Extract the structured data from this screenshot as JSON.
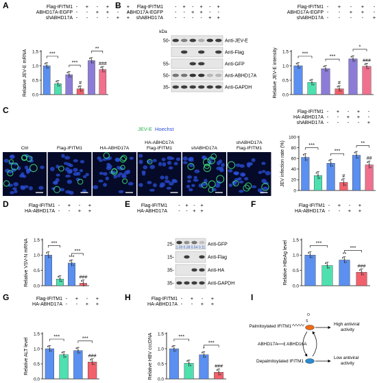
{
  "colors": {
    "blue": "#5b8ff0",
    "teal": "#4fe0b0",
    "red": "#f2606c",
    "purple": "#8c7cd8",
    "pink": "#f0708e",
    "axis": "#000000",
    "blot_bg": "#e6e6e6",
    "band": "#2a2a2a",
    "micro_bg": "#050a28",
    "micro_nuclei": "#2a4fd8",
    "micro_green": "#3de07a",
    "blue_number": "#2a5ec8",
    "palm_node": "#f06a18",
    "depalm_node": "#2b8ad0"
  },
  "panels": {
    "A": "A",
    "B": "B",
    "C": "C",
    "D": "D",
    "E": "E",
    "F": "F",
    "G": "G",
    "H": "H",
    "I": "I"
  },
  "micro": {
    "legend_green": "JEV-E",
    "legend_blue": "Hoechst",
    "labels": [
      [
        "Ctrl"
      ],
      [
        "Flag-IFITM1"
      ],
      [
        "HA-ABHD17A"
      ],
      [
        "HA-ABHD17A",
        "Flag-IFITM1"
      ],
      [
        "shABHD17A"
      ],
      [
        "shABHD17A",
        "Flag-IFITM1"
      ]
    ]
  },
  "blots": {
    "B": {
      "kda": "kDa",
      "conditions": [
        {
          "label": "Flag-IFITM1",
          "signs": [
            "-",
            "+",
            "-",
            "+",
            "-",
            "+"
          ]
        },
        {
          "label": "ABHD17A-EGFP",
          "signs": [
            "-",
            "-",
            "+",
            "+",
            "-",
            "-"
          ]
        },
        {
          "label": "shABHD17A",
          "signs": [
            "-",
            "-",
            "-",
            "-",
            "+",
            "+"
          ]
        }
      ],
      "rows": [
        {
          "marker": "50-",
          "label": "Anti-JEV-E",
          "bands": [
            0.9,
            0.55,
            0.9,
            0.3,
            0.95,
            0.9
          ]
        },
        {
          "marker": "",
          "label": "Anti-Flag",
          "bands": [
            0,
            0.9,
            0,
            0.9,
            0,
            0.9
          ]
        },
        {
          "marker": "55-",
          "label": "Anti-GFP",
          "bands": [
            0,
            0,
            0.9,
            0.9,
            0,
            0
          ]
        },
        {
          "marker": "50-",
          "label": "Anti-ABHD17A",
          "bands": [
            0.6,
            0.6,
            0.95,
            0.95,
            0.25,
            0.25
          ]
        },
        {
          "marker": "35-",
          "label": "Anti-GAPDH",
          "bands": [
            0.9,
            0.9,
            0.9,
            0.9,
            0.9,
            0.9
          ]
        }
      ]
    },
    "E": {
      "conditions": [
        {
          "label": "Flag-IFITM1",
          "signs": [
            "-",
            "+",
            "-",
            "+"
          ]
        },
        {
          "label": "HA-ABHD17A",
          "signs": [
            "-",
            "-",
            "+",
            "+"
          ]
        }
      ],
      "rows": [
        {
          "marker": "25-",
          "label": "Anti-GFP",
          "bands": [
            0.9,
            0.45,
            0.6,
            0.2
          ],
          "numbers": [
            "1.00",
            "0.38",
            "0.54",
            "0.11"
          ]
        },
        {
          "marker": "15-",
          "label": "Anti-Flag",
          "bands": [
            0,
            0.9,
            0,
            0.9
          ]
        },
        {
          "marker": "35-",
          "label": "Anti-HA",
          "bands": [
            0,
            0,
            0.9,
            0.9
          ]
        },
        {
          "marker": "35-",
          "label": "Anti-GAPDH",
          "bands": [
            0.9,
            0.9,
            0.9,
            0.9
          ]
        }
      ]
    }
  },
  "diagram_I": {
    "palmitoylated": "Palmitoylated IFITM1",
    "depalmitoylated": "Depalmitoylated IFITM1",
    "enzyme": "ABHD17A",
    "enzyme_inhibited": "ABHD16A",
    "high_activity": [
      "High antiviral",
      "activity"
    ],
    "low_activity": [
      "Low antiviral",
      "activity"
    ]
  },
  "chart_data": [
    {
      "panel": "A",
      "type": "bar",
      "ylabel": "Relative JEV-E mRNA",
      "ylim": [
        0,
        1.5
      ],
      "yticks": [
        "0.0",
        "0.5",
        "1.0",
        "1.5"
      ],
      "conditions": [
        {
          "label": "Flag-IFITM1",
          "signs": [
            "-",
            "+",
            "-",
            "+",
            "-",
            "+"
          ]
        },
        {
          "label": "ABHD17A-EGFP",
          "signs": [
            "-",
            "-",
            "+",
            "+",
            "-",
            "-"
          ]
        },
        {
          "label": "shABHD17A",
          "signs": [
            "-",
            "-",
            "-",
            "-",
            "+",
            "+"
          ]
        }
      ],
      "values": [
        1.0,
        0.38,
        0.69,
        0.2,
        1.18,
        0.87
      ],
      "colors": [
        "blue",
        "teal",
        "purple",
        "red",
        "purple",
        "pink"
      ],
      "above": [
        "",
        "",
        "",
        "#",
        "",
        "###"
      ],
      "brackets": [
        {
          "from": 0,
          "to": 1,
          "label": "***"
        },
        {
          "from": 2,
          "to": 3,
          "label": "***"
        },
        {
          "from": 4,
          "to": 5,
          "label": "**"
        }
      ]
    },
    {
      "panel": "B",
      "type": "bar",
      "ylabel": "Relative JEV-E intensity",
      "ylim": [
        0,
        1.5
      ],
      "yticks": [
        "0.0",
        "0.5",
        "1.0",
        "1.5"
      ],
      "conditions": [
        {
          "label": "Flag-IFITM1",
          "signs": [
            "-",
            "+",
            "-",
            "+",
            "-",
            "+"
          ]
        },
        {
          "label": "ABHD17A-EGFP",
          "signs": [
            "-",
            "-",
            "+",
            "+",
            "-",
            "-"
          ]
        },
        {
          "label": "shABHD17A",
          "signs": [
            "-",
            "-",
            "-",
            "-",
            "+",
            "+"
          ]
        }
      ],
      "values": [
        1.0,
        0.42,
        0.9,
        0.2,
        1.24,
        0.98
      ],
      "colors": [
        "blue",
        "teal",
        "purple",
        "red",
        "purple",
        "pink"
      ],
      "above": [
        "",
        "",
        "",
        "#",
        "",
        "###"
      ],
      "brackets": [
        {
          "from": 0,
          "to": 1,
          "label": "***"
        },
        {
          "from": 2,
          "to": 3,
          "label": "***"
        },
        {
          "from": 4,
          "to": 5,
          "label": "*"
        }
      ]
    },
    {
      "panel": "C",
      "type": "bar",
      "ylabel": "JEV infection rate (%)",
      "ylim": [
        0,
        100
      ],
      "yticks": [
        "0",
        "20",
        "40",
        "60",
        "80",
        "100"
      ],
      "conditions": [
        {
          "label": "Flag-IFITM1",
          "signs": [
            "-",
            "+",
            "-",
            "+",
            "-",
            "+"
          ]
        },
        {
          "label": "HA-ABHD17A",
          "signs": [
            "-",
            "-",
            "+",
            "+",
            "-",
            "-"
          ]
        },
        {
          "label": "shABHD17A",
          "signs": [
            "-",
            "-",
            "-",
            "-",
            "+",
            "+"
          ]
        }
      ],
      "values": [
        62,
        28,
        51,
        15,
        66,
        48
      ],
      "colors": [
        "blue",
        "teal",
        "blue",
        "red",
        "blue",
        "pink"
      ],
      "above": [
        "",
        "",
        "",
        "#",
        "",
        "##"
      ],
      "brackets": [
        {
          "from": 0,
          "to": 1,
          "label": "***"
        },
        {
          "from": 2,
          "to": 3,
          "label": "***"
        },
        {
          "from": 4,
          "to": 5,
          "label": "**"
        }
      ]
    },
    {
      "panel": "D",
      "type": "bar",
      "ylabel": "Relative VSV-N mRNA",
      "ylim": [
        0,
        1.5
      ],
      "yticks": [
        "0.0",
        "0.5",
        "1.0",
        "1.5"
      ],
      "conditions": [
        {
          "label": "Flag-IFITM1",
          "signs": [
            "-",
            "+",
            "-",
            "+"
          ]
        },
        {
          "label": "HA-ABHD17A",
          "signs": [
            "-",
            "-",
            "+",
            "+"
          ]
        }
      ],
      "values": [
        1.0,
        0.22,
        0.74,
        0.08
      ],
      "colors": [
        "blue",
        "teal",
        "blue",
        "red"
      ],
      "above": [
        "",
        "",
        "***",
        "###"
      ],
      "brackets": [
        {
          "from": 0,
          "to": 1,
          "label": "***"
        },
        {
          "from": 2,
          "to": 3,
          "label": "***"
        }
      ]
    },
    {
      "panel": "F",
      "type": "bar",
      "ylabel": "Relative HBeAg level",
      "ylim": [
        0,
        1.5
      ],
      "yticks": [
        "0.0",
        "0.5",
        "1.0",
        "1.5"
      ],
      "conditions": [
        {
          "label": "Flag-IFITM1",
          "signs": [
            "-",
            "+",
            "-",
            "+"
          ]
        },
        {
          "label": "HA-ABHD17A",
          "signs": [
            "-",
            "-",
            "+",
            "+"
          ]
        }
      ],
      "values": [
        1.0,
        0.66,
        0.84,
        0.44
      ],
      "colors": [
        "blue",
        "teal",
        "blue",
        "red"
      ],
      "above": [
        "",
        "",
        "**",
        "###"
      ],
      "brackets": [
        {
          "from": 0,
          "to": 1,
          "label": "***"
        },
        {
          "from": 2,
          "to": 3,
          "label": "***"
        }
      ]
    },
    {
      "panel": "G",
      "type": "bar",
      "ylabel": "Relative ALT level",
      "ylim": [
        0,
        1.5
      ],
      "yticks": [
        "0.0",
        "0.5",
        "1.0",
        "1.5"
      ],
      "conditions": [
        {
          "label": "Flag-IFITM1",
          "signs": [
            "-",
            "+",
            "-",
            "+"
          ]
        },
        {
          "label": "HA-ABHD17A",
          "signs": [
            "-",
            "-",
            "+",
            "+"
          ]
        }
      ],
      "values": [
        1.0,
        0.8,
        0.94,
        0.56
      ],
      "colors": [
        "blue",
        "teal",
        "blue",
        "red"
      ],
      "above": [
        "",
        "",
        "",
        "###"
      ],
      "brackets": [
        {
          "from": 0,
          "to": 1,
          "label": "***"
        },
        {
          "from": 2,
          "to": 3,
          "label": "***"
        }
      ]
    },
    {
      "panel": "H",
      "type": "bar",
      "ylabel": "Relative HBV cccDNA",
      "ylim": [
        0,
        1.5
      ],
      "yticks": [
        "0.0",
        "0.5",
        "1.0",
        "1.5"
      ],
      "conditions": [
        {
          "label": "Flag-IFITM1",
          "signs": [
            "-",
            "+",
            "-",
            "+"
          ]
        },
        {
          "label": "HA-ABHD17A",
          "signs": [
            "-",
            "-",
            "+",
            "+"
          ]
        }
      ],
      "values": [
        1.0,
        0.52,
        0.8,
        0.22
      ],
      "colors": [
        "blue",
        "teal",
        "blue",
        "red"
      ],
      "above": [
        "",
        "",
        "*",
        "###"
      ],
      "brackets": [
        {
          "from": 0,
          "to": 1,
          "label": "***"
        },
        {
          "from": 2,
          "to": 3,
          "label": "***"
        }
      ]
    }
  ]
}
